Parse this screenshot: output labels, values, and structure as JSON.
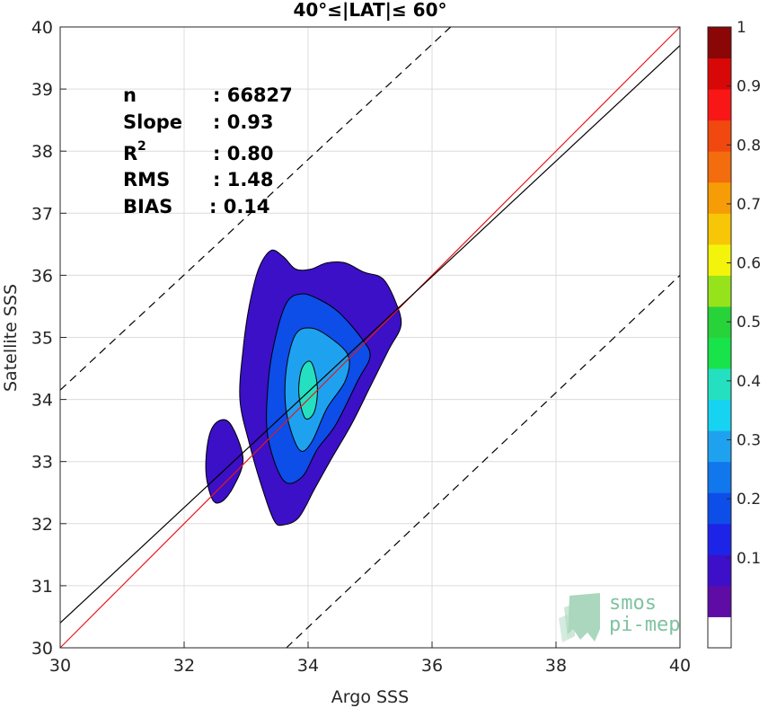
{
  "chart_data": {
    "type": "contour",
    "title": "40°≤|LAT|≤ 60°",
    "xlabel": "Argo SSS",
    "ylabel": "Satellite SSS",
    "xlim": [
      30,
      40
    ],
    "ylim": [
      30,
      40
    ],
    "xticks": [
      "30",
      "32",
      "34",
      "36",
      "38",
      "40"
    ],
    "yticks": [
      "30",
      "31",
      "32",
      "33",
      "34",
      "35",
      "36",
      "37",
      "38",
      "39",
      "40"
    ],
    "grid": true,
    "stats": [
      {
        "label": "n",
        "value": ": 66827"
      },
      {
        "label": "Slope",
        "value": ": 0.93"
      },
      {
        "label": "R",
        "sup": "2",
        "value": ": 0.80"
      },
      {
        "label": "RMS",
        "value": ": 1.48"
      },
      {
        "label": "BIAS",
        "value": ": 0.14"
      }
    ],
    "lines": [
      {
        "name": "one-to-one",
        "color": "#e8161d",
        "style": "solid",
        "x": [
          30,
          40
        ],
        "y": [
          30,
          40
        ]
      },
      {
        "name": "regression",
        "color": "#000000",
        "style": "solid",
        "x": [
          30,
          40
        ],
        "y": [
          30.4,
          39.7
        ]
      },
      {
        "name": "upper-bound",
        "color": "#000000",
        "style": "dashed",
        "x": [
          30,
          36.3
        ],
        "y": [
          34.15,
          40
        ]
      },
      {
        "name": "lower-bound",
        "color": "#000000",
        "style": "dashed",
        "x": [
          33.65,
          40
        ],
        "y": [
          30,
          36
        ]
      }
    ],
    "contour_levels": [
      {
        "level": 0.05,
        "color": "#3b10c6",
        "points": [
          [
            33.45,
            32.05
          ],
          [
            33.25,
            32.6
          ],
          [
            33.05,
            33.3
          ],
          [
            32.9,
            34.0
          ],
          [
            32.95,
            34.8
          ],
          [
            33.05,
            35.5
          ],
          [
            33.2,
            36.1
          ],
          [
            33.4,
            36.4
          ],
          [
            33.6,
            36.3
          ],
          [
            33.8,
            36.1
          ],
          [
            34.05,
            36.1
          ],
          [
            34.3,
            36.2
          ],
          [
            34.6,
            36.2
          ],
          [
            34.9,
            36.05
          ],
          [
            35.2,
            35.95
          ],
          [
            35.4,
            35.6
          ],
          [
            35.5,
            35.2
          ],
          [
            35.3,
            34.8
          ],
          [
            35.0,
            34.2
          ],
          [
            34.7,
            33.6
          ],
          [
            34.35,
            33.0
          ],
          [
            34.1,
            32.55
          ],
          [
            33.85,
            32.1
          ],
          [
            33.6,
            31.98
          ]
        ]
      },
      {
        "level": 0.05,
        "color": "#3b10c6",
        "points": [
          [
            32.55,
            33.65
          ],
          [
            32.75,
            33.6
          ],
          [
            32.95,
            33.05
          ],
          [
            32.8,
            32.6
          ],
          [
            32.6,
            32.35
          ],
          [
            32.45,
            32.4
          ],
          [
            32.35,
            32.85
          ],
          [
            32.4,
            33.4
          ]
        ]
      },
      {
        "level": 0.2,
        "color": "#0d4de8",
        "points": [
          [
            33.6,
            32.7
          ],
          [
            33.35,
            33.4
          ],
          [
            33.35,
            34.2
          ],
          [
            33.45,
            34.9
          ],
          [
            33.65,
            35.55
          ],
          [
            33.9,
            35.7
          ],
          [
            34.2,
            35.6
          ],
          [
            34.5,
            35.4
          ],
          [
            34.85,
            35.0
          ],
          [
            35.0,
            34.7
          ],
          [
            34.8,
            34.3
          ],
          [
            34.45,
            33.6
          ],
          [
            34.15,
            33.2
          ],
          [
            33.9,
            32.75
          ]
        ]
      },
      {
        "level": 0.3,
        "color": "#1ea2ef",
        "points": [
          [
            33.85,
            33.2
          ],
          [
            33.65,
            33.8
          ],
          [
            33.65,
            34.5
          ],
          [
            33.8,
            35.05
          ],
          [
            34.05,
            35.15
          ],
          [
            34.35,
            35.0
          ],
          [
            34.65,
            34.7
          ],
          [
            34.6,
            34.3
          ],
          [
            34.3,
            33.85
          ],
          [
            34.05,
            33.3
          ]
        ]
      },
      {
        "level": 0.4,
        "color": "#24e0c0",
        "points": [
          [
            33.95,
            33.7
          ],
          [
            33.85,
            34.1
          ],
          [
            33.9,
            34.5
          ],
          [
            34.05,
            34.6
          ],
          [
            34.15,
            34.2
          ],
          [
            34.1,
            33.8
          ]
        ]
      }
    ],
    "colorbar": {
      "ticks": [
        "0.1",
        "0.2",
        "0.3",
        "0.4",
        "0.5",
        "0.6",
        "0.7",
        "0.8",
        "0.9",
        "1"
      ],
      "bands": [
        "#ffffff",
        "#5f0ba5",
        "#3d0fc9",
        "#1e23e8",
        "#0d4de8",
        "#1177ec",
        "#1ea2ef",
        "#17d3f2",
        "#24e0c0",
        "#18e34a",
        "#28d33a",
        "#96e31b",
        "#f3f30c",
        "#f7c607",
        "#f69c07",
        "#f36c0d",
        "#f0480f",
        "#f91616",
        "#d90808",
        "#8b0606"
      ]
    }
  },
  "watermark": {
    "line1": "smos",
    "line2": "pi-mep",
    "color": "#7fc3a0"
  }
}
